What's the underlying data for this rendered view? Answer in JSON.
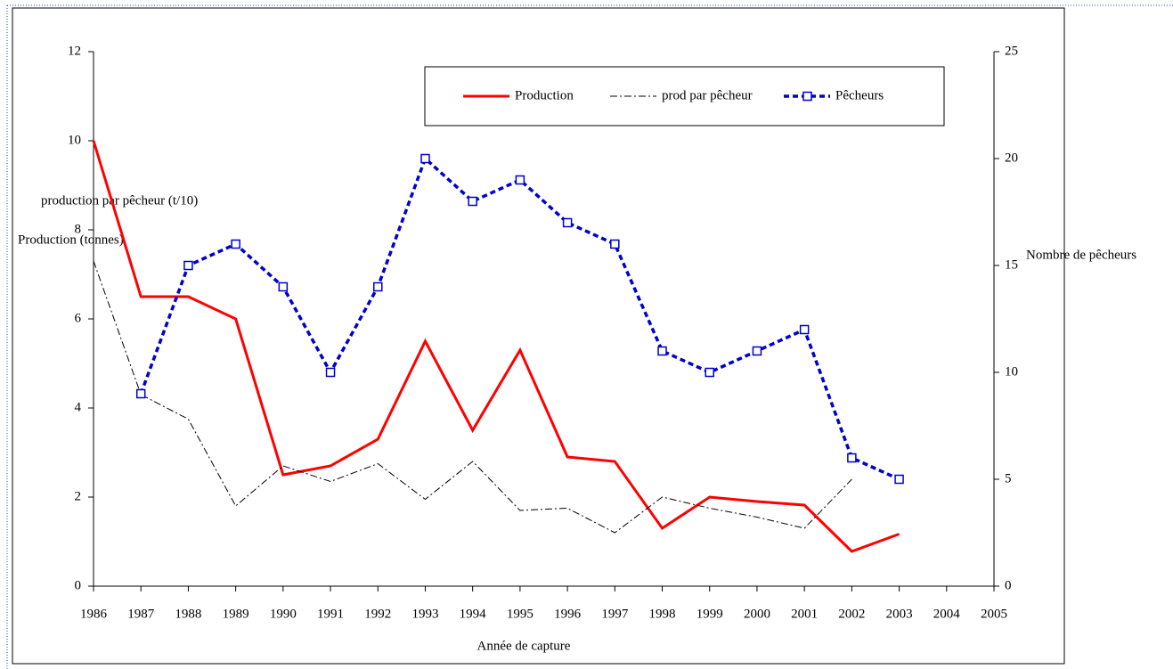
{
  "chart_data": {
    "type": "line",
    "x_label": "Année de capture",
    "y_label": "Production (tonnes)",
    "y_label_2": "production par pêcheur (t/10)",
    "y2_label": "Nombre de pêcheurs",
    "categories": [
      "1986",
      "1987",
      "1988",
      "1989",
      "1990",
      "1991",
      "1992",
      "1993",
      "1994",
      "1995",
      "1996",
      "1997",
      "1998",
      "1999",
      "2000",
      "2001",
      "2002",
      "2003",
      "2004",
      "2005"
    ],
    "series": [
      {
        "name": "Production",
        "color": "#ff0000",
        "values": [
          10,
          6.5,
          6.5,
          6.0,
          2.5,
          2.7,
          3.3,
          5.5,
          3.5,
          5.3,
          2.9,
          2.8,
          1.3,
          2.0,
          1.9,
          1.82,
          0.78,
          1.17,
          null,
          null
        ]
      },
      {
        "name": "prod par pêcheur",
        "color": "#000000",
        "values": [
          7.3,
          4.3,
          3.75,
          1.8,
          2.7,
          2.35,
          2.75,
          1.95,
          2.8,
          1.7,
          1.75,
          1.2,
          2.0,
          1.75,
          1.55,
          1.3,
          2.4,
          null,
          null,
          null
        ]
      },
      {
        "name": "Pêcheurs",
        "color": "#0000cc",
        "axis": "y2",
        "values": [
          null,
          9,
          15,
          16,
          14,
          10,
          14,
          20,
          18,
          19,
          17,
          16,
          11,
          10,
          11,
          12,
          6,
          5,
          null,
          null
        ]
      }
    ],
    "ylim": [
      0,
      12
    ],
    "yticks": [
      0,
      2,
      4,
      6,
      8,
      10,
      12
    ],
    "y2lim": [
      0,
      25
    ],
    "y2ticks": [
      0,
      5,
      10,
      15,
      20,
      25
    ],
    "legend": "top"
  }
}
